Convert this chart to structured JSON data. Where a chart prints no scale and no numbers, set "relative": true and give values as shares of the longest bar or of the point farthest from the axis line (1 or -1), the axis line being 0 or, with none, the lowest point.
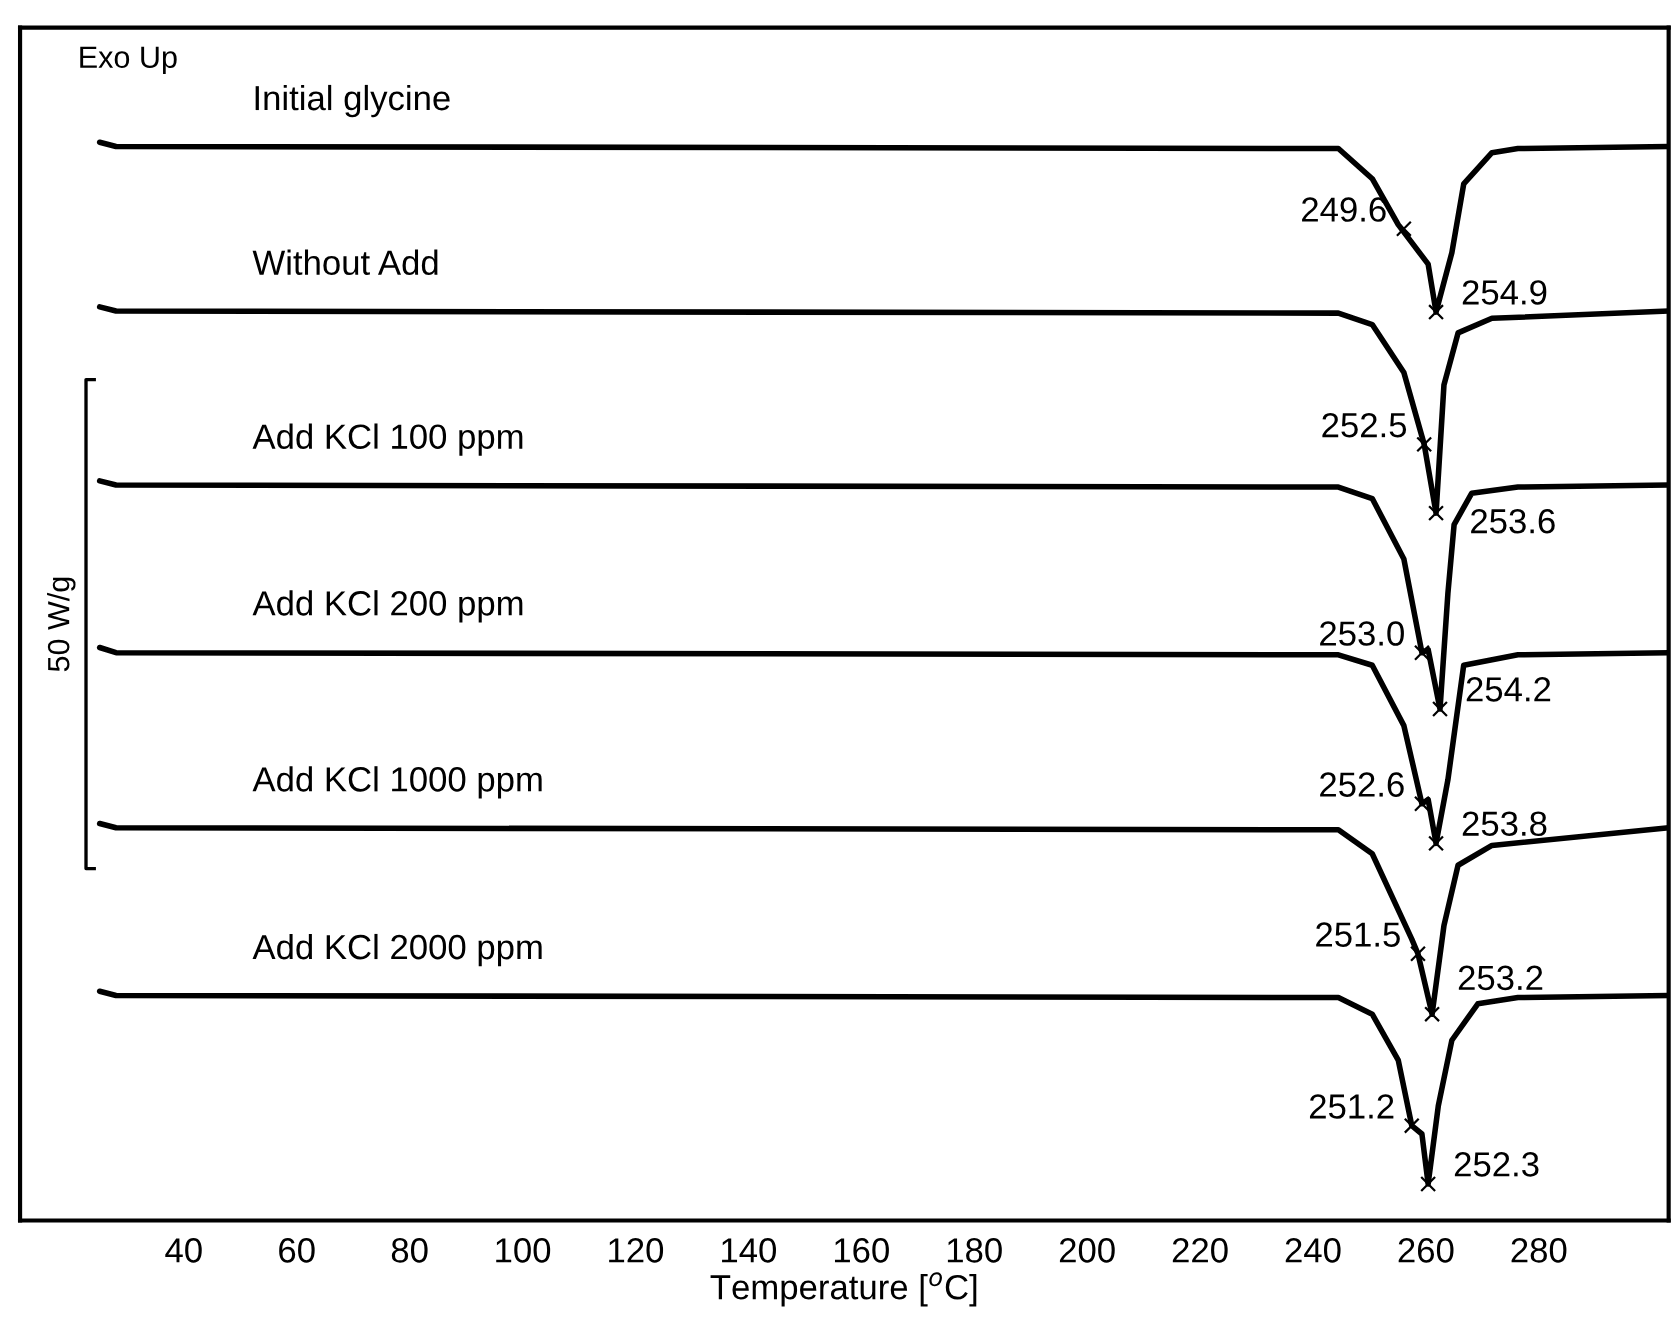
{
  "chart_data": {
    "type": "line",
    "relative": true,
    "xlabel": "Temperature [$^{o}$C]",
    "xlim": [
      11,
      303
    ],
    "xticks": [
      40,
      60,
      80,
      100,
      120,
      140,
      160,
      180,
      200,
      220,
      240,
      260,
      280
    ],
    "grid": false,
    "legend": false,
    "marker": "none",
    "line_style": "solid",
    "series": [
      {
        "name": "Initial glycine",
        "color": "#000000",
        "x": [
          25.1,
          28,
          244.5,
          250.5,
          255.1,
          260.4,
          261.8,
          264.6,
          266.7,
          271.7,
          276.3,
          303
        ],
        "values": [
          1.0,
          0.996,
          0.994,
          0.965,
          0.921,
          0.883,
          0.837,
          0.894,
          0.96,
          0.99,
          0.994,
          0.996
        ]
      },
      {
        "name": "Without Add",
        "color": "#000000",
        "x": [
          25.1,
          28,
          244.5,
          250.5,
          256.1,
          259.7,
          261.8,
          263.2,
          265.7,
          271.7,
          303
        ],
        "values": [
          0.842,
          0.838,
          0.836,
          0.825,
          0.779,
          0.71,
          0.644,
          0.767,
          0.817,
          0.831,
          0.838
        ]
      },
      {
        "name": "Add KCl 100 ppm",
        "color": "#000000",
        "x": [
          25.1,
          28,
          244.5,
          250.5,
          256.1,
          259.3,
          260.4,
          262.5,
          263.9,
          265.0,
          268.1,
          276.3,
          303
        ],
        "values": [
          0.675,
          0.671,
          0.669,
          0.658,
          0.6,
          0.51,
          0.513,
          0.456,
          0.567,
          0.633,
          0.663,
          0.669,
          0.671
        ]
      },
      {
        "name": "Add KCl 200 ppm",
        "color": "#000000",
        "x": [
          25.1,
          28,
          244.5,
          250.5,
          256.1,
          259.3,
          260.4,
          261.8,
          263.9,
          266.7,
          276.3,
          303
        ],
        "values": [
          0.515,
          0.51,
          0.508,
          0.498,
          0.44,
          0.365,
          0.369,
          0.327,
          0.388,
          0.498,
          0.508,
          0.51
        ]
      },
      {
        "name": "Add KCl 1000 ppm",
        "color": "#000000",
        "x": [
          25.1,
          28,
          244.5,
          250.5,
          257.5,
          258.6,
          261.1,
          263.2,
          265.7,
          271.7,
          303
        ],
        "values": [
          0.346,
          0.342,
          0.34,
          0.317,
          0.235,
          0.221,
          0.163,
          0.248,
          0.306,
          0.325,
          0.342
        ]
      },
      {
        "name": "Add KCl 2000 ppm",
        "color": "#000000",
        "x": [
          25.1,
          28,
          244.5,
          250.5,
          255.1,
          257.5,
          259.3,
          260.4,
          262.2,
          264.6,
          269.2,
          276.3,
          303
        ],
        "values": [
          0.185,
          0.181,
          0.179,
          0.163,
          0.119,
          0.056,
          0.048,
          0,
          0.075,
          0.138,
          0.173,
          0.179,
          0.181
        ]
      }
    ],
    "annotations": [
      "Exo Up",
      "50 W/g",
      {
        "text": "249.6",
        "x": 256.1,
        "y": 0.917
      },
      {
        "text": "254.9",
        "x": 261.8,
        "y": 0.837
      },
      {
        "text": "252.5",
        "x": 259.7,
        "y": 0.71
      },
      {
        "text": "253.6",
        "x": 261.8,
        "y": 0.644
      },
      {
        "text": "253.0",
        "x": 259.3,
        "y": 0.51
      },
      {
        "text": "254.2",
        "x": 262.5,
        "y": 0.456
      },
      {
        "text": "252.6",
        "x": 259.3,
        "y": 0.365
      },
      {
        "text": "253.8",
        "x": 261.8,
        "y": 0.327
      },
      {
        "text": "251.5",
        "x": 258.6,
        "y": 0.221
      },
      {
        "text": "253.2",
        "x": 261.1,
        "y": 0.163
      },
      {
        "text": "251.2",
        "x": 257.5,
        "y": 0.056
      },
      {
        "text": "252.3",
        "x": 260.4,
        "y": 0
      }
    ]
  }
}
